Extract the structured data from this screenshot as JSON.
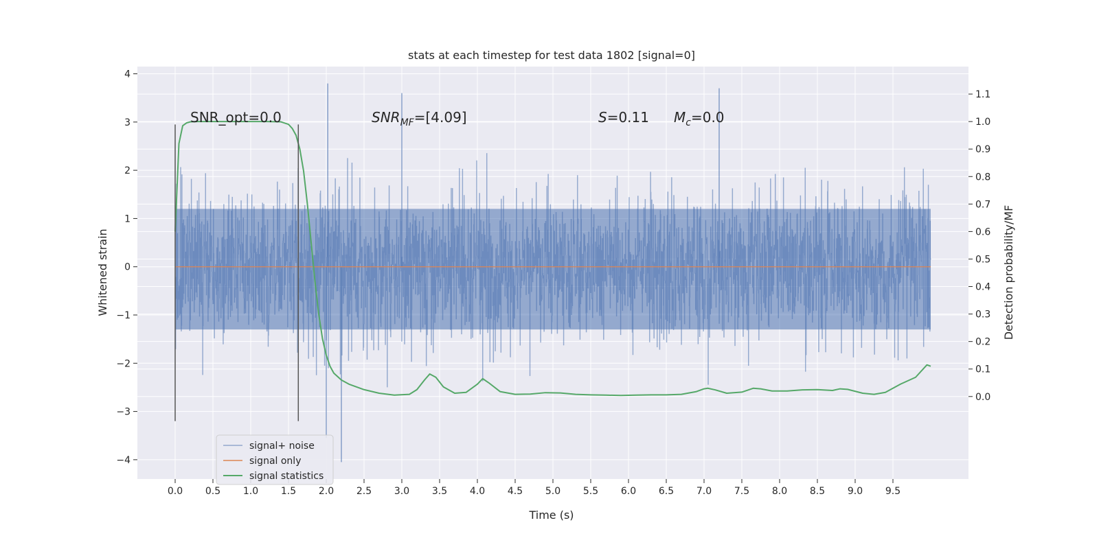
{
  "chart_data": {
    "type": "line",
    "title": "stats at each timestep for test data 1802 [signal=0]",
    "xlabel": "Time (s)",
    "ylabel": "Whitened strain",
    "y2label": "Detection probability/MF",
    "xlim": [
      -0.5,
      10.5
    ],
    "ylim": [
      -4.4,
      4.15
    ],
    "y2lim": [
      -0.3,
      1.2
    ],
    "x_ticks": [
      0.0,
      0.5,
      1.0,
      1.5,
      2.0,
      2.5,
      3.0,
      3.5,
      4.0,
      4.5,
      5.0,
      5.5,
      6.0,
      6.5,
      7.0,
      7.5,
      8.0,
      8.5,
      9.0,
      9.5
    ],
    "x_tick_labels": [
      "0.0",
      "0.5",
      "1.0",
      "1.5",
      "2.0",
      "2.5",
      "3.0",
      "3.5",
      "4.0",
      "4.5",
      "5.0",
      "5.5",
      "6.0",
      "6.5",
      "7.0",
      "7.5",
      "8.0",
      "8.5",
      "9.0",
      "9.5"
    ],
    "y_ticks": [
      -4,
      -3,
      -2,
      -1,
      0,
      1,
      2,
      3,
      4
    ],
    "y_tick_labels": [
      "−4",
      "−3",
      "−2",
      "−1",
      "0",
      "1",
      "2",
      "3",
      "4"
    ],
    "y2_ticks": [
      0.0,
      0.1,
      0.2,
      0.3,
      0.4,
      0.5,
      0.6,
      0.7,
      0.8,
      0.9,
      1.0,
      1.1
    ],
    "y2_tick_labels": [
      "0.0",
      "0.1",
      "0.2",
      "0.3",
      "0.4",
      "0.5",
      "0.6",
      "0.7",
      "0.8",
      "0.9",
      "1.0",
      "1.1"
    ],
    "grid": true,
    "legend_position": "lower-left",
    "series": [
      {
        "name": "signal+ noise",
        "axis": "left",
        "color": "#4c72b0",
        "style": "dense-noise",
        "x_range": [
          0.0,
          10.0
        ],
        "core_band": [
          -1.3,
          1.2
        ],
        "extremes": {
          "max": 3.8,
          "min": -4.05
        }
      },
      {
        "name": "signal only",
        "axis": "left",
        "color": "#dd8452",
        "x": [
          0.0,
          10.0
        ],
        "values": [
          0.0,
          0.0
        ]
      },
      {
        "name": "signal statistics",
        "axis": "right",
        "color": "#55a868",
        "x": [
          0.0,
          0.05,
          0.1,
          0.15,
          0.2,
          0.3,
          0.5,
          0.8,
          1.0,
          1.2,
          1.4,
          1.5,
          1.55,
          1.6,
          1.65,
          1.7,
          1.75,
          1.8,
          1.85,
          1.9,
          1.95,
          2.0,
          2.05,
          2.1,
          2.2,
          2.3,
          2.5,
          2.7,
          2.9,
          3.1,
          3.2,
          3.3,
          3.37,
          3.45,
          3.55,
          3.7,
          3.85,
          4.0,
          4.07,
          4.15,
          4.3,
          4.5,
          4.7,
          4.9,
          5.1,
          5.3,
          5.5,
          5.7,
          5.9,
          6.1,
          6.3,
          6.5,
          6.7,
          6.9,
          7.0,
          7.05,
          7.15,
          7.3,
          7.5,
          7.65,
          7.75,
          7.9,
          8.1,
          8.3,
          8.5,
          8.7,
          8.8,
          8.9,
          9.1,
          9.25,
          9.4,
          9.5,
          9.6,
          9.8,
          9.9,
          9.95,
          10.0
        ],
        "values": [
          0.6,
          0.92,
          0.985,
          0.995,
          0.999,
          1.0,
          1.0,
          1.0,
          1.0,
          1.0,
          0.999,
          0.99,
          0.975,
          0.95,
          0.9,
          0.82,
          0.7,
          0.56,
          0.42,
          0.3,
          0.21,
          0.15,
          0.11,
          0.085,
          0.06,
          0.045,
          0.025,
          0.012,
          0.005,
          0.008,
          0.025,
          0.06,
          0.082,
          0.07,
          0.035,
          0.012,
          0.015,
          0.045,
          0.065,
          0.05,
          0.018,
          0.008,
          0.009,
          0.014,
          0.013,
          0.008,
          0.006,
          0.005,
          0.004,
          0.005,
          0.006,
          0.006,
          0.008,
          0.018,
          0.028,
          0.03,
          0.024,
          0.012,
          0.016,
          0.03,
          0.028,
          0.02,
          0.02,
          0.024,
          0.025,
          0.022,
          0.028,
          0.026,
          0.012,
          0.008,
          0.015,
          0.03,
          0.045,
          0.07,
          0.1,
          0.115,
          0.11
        ]
      }
    ],
    "vertical_lines": [
      {
        "x": 0.0,
        "y_from": -3.2,
        "y_to": 2.95
      },
      {
        "x": 1.63,
        "y_from": -3.2,
        "y_to": 2.95
      }
    ],
    "annotations": [
      {
        "id": "snr_opt",
        "text": "SNR_opt=0.0",
        "x": 0.2,
        "y": 3.1
      },
      {
        "id": "snr_mf",
        "text_parts": [
          "SNR",
          "MF",
          "=[4.09]"
        ],
        "x": 2.6,
        "y": 3.1
      },
      {
        "id": "s_stat",
        "text_parts": [
          "S",
          "=0.11"
        ],
        "x": 5.6,
        "y": 3.1
      },
      {
        "id": "mc",
        "text_parts": [
          "M",
          "c",
          "=0.0"
        ],
        "x": 6.6,
        "y": 3.1
      }
    ]
  }
}
